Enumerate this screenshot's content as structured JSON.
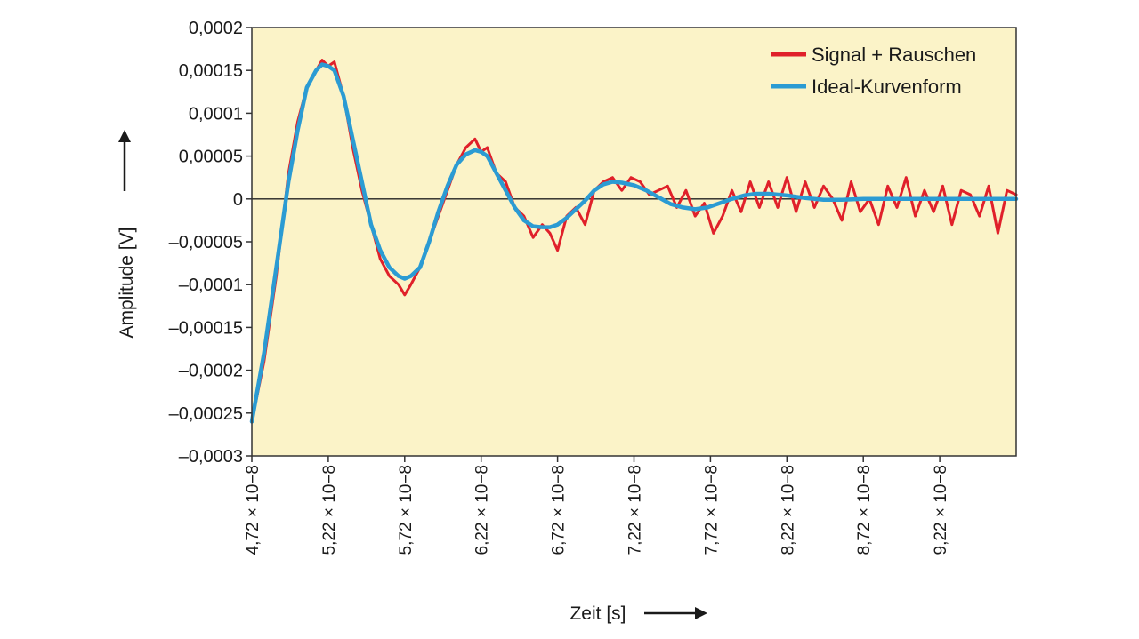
{
  "chart_data": {
    "type": "line",
    "xlabel": "Zeit [s]",
    "ylabel": "Amplitude [V]",
    "xlim": [
      4.72e-08,
      9.72e-08
    ],
    "ylim": [
      -0.0003,
      0.0002
    ],
    "x_ticks": [
      4.72e-08,
      5.22e-08,
      5.72e-08,
      6.22e-08,
      6.72e-08,
      7.22e-08,
      7.72e-08,
      8.22e-08,
      8.72e-08,
      9.22e-08
    ],
    "x_tick_labels": [
      "4,72 × 10−8",
      "5,22 × 10−8",
      "5,72 × 10−8",
      "6,22 × 10−8",
      "6,72 × 10−8",
      "7,22 × 10−8",
      "7,72 × 10−8",
      "8,22 × 10−8",
      "8,72 × 10−8",
      "9,22 × 10−8"
    ],
    "y_ticks": [
      0.0002,
      0.00015,
      0.0001,
      5e-05,
      0,
      -5e-05,
      -0.0001,
      -0.00015,
      -0.0002,
      -0.00025,
      -0.0003
    ],
    "y_tick_labels": [
      "0,0002",
      "0,00015",
      "0,0001",
      "0,00005",
      "0",
      "–0,00005",
      "–0,0001",
      "–0,00015",
      "–0,0002",
      "–0,00025",
      "–0,0003"
    ],
    "legend_position": "top-right",
    "grid": false,
    "background": "#fbf3c8",
    "series": [
      {
        "name": "Signal + Rauschen",
        "color": "#e0202a",
        "x": [
          4.72e-08,
          4.8e-08,
          4.88e-08,
          4.96e-08,
          5.02e-08,
          5.08e-08,
          5.14e-08,
          5.18e-08,
          5.22e-08,
          5.26e-08,
          5.32e-08,
          5.38e-08,
          5.44e-08,
          5.5e-08,
          5.56e-08,
          5.62e-08,
          5.68e-08,
          5.72e-08,
          5.76e-08,
          5.82e-08,
          5.88e-08,
          5.94e-08,
          6e-08,
          6.06e-08,
          6.12e-08,
          6.18e-08,
          6.22e-08,
          6.26e-08,
          6.32e-08,
          6.38e-08,
          6.44e-08,
          6.5e-08,
          6.56e-08,
          6.62e-08,
          6.67e-08,
          6.72e-08,
          6.78e-08,
          6.84e-08,
          6.9e-08,
          6.96e-08,
          7.02e-08,
          7.08e-08,
          7.14e-08,
          7.2e-08,
          7.26e-08,
          7.32e-08,
          7.38e-08,
          7.44e-08,
          7.5e-08,
          7.56e-08,
          7.62e-08,
          7.68e-08,
          7.74e-08,
          7.8e-08,
          7.86e-08,
          7.92e-08,
          7.98e-08,
          8.04e-08,
          8.1e-08,
          8.16e-08,
          8.22e-08,
          8.28e-08,
          8.34e-08,
          8.4e-08,
          8.46e-08,
          8.52e-08,
          8.58e-08,
          8.64e-08,
          8.7e-08,
          8.76e-08,
          8.82e-08,
          8.88e-08,
          8.94e-08,
          9e-08,
          9.06e-08,
          9.12e-08,
          9.18e-08,
          9.24e-08,
          9.3e-08,
          9.36e-08,
          9.42e-08,
          9.48e-08,
          9.54e-08,
          9.6e-08,
          9.66e-08,
          9.72e-08
        ],
        "values": [
          -0.00026,
          -0.00019,
          -9e-05,
          3e-05,
          9e-05,
          0.00013,
          0.00015,
          0.000162,
          0.000155,
          0.00016,
          0.00012,
          6e-05,
          1e-05,
          -3e-05,
          -7e-05,
          -9e-05,
          -0.0001,
          -0.000112,
          -0.0001,
          -8e-05,
          -5e-05,
          -2e-05,
          1e-05,
          4e-05,
          6e-05,
          7e-05,
          5.5e-05,
          6e-05,
          3e-05,
          2e-05,
          -1e-05,
          -2e-05,
          -4.5e-05,
          -3e-05,
          -4e-05,
          -6e-05,
          -2e-05,
          -1e-05,
          -3e-05,
          1e-05,
          2e-05,
          2.5e-05,
          1e-05,
          2.5e-05,
          2e-05,
          5e-06,
          1e-05,
          1.5e-05,
          -1e-05,
          1e-05,
          -2e-05,
          -5e-06,
          -4e-05,
          -2e-05,
          1e-05,
          -1.5e-05,
          2e-05,
          -1e-05,
          2e-05,
          -1e-05,
          2.5e-05,
          -1.5e-05,
          2e-05,
          -1e-05,
          1.5e-05,
          0.0,
          -2.5e-05,
          2e-05,
          -1.5e-05,
          0.0,
          -3e-05,
          1.5e-05,
          -1e-05,
          2.5e-05,
          -2e-05,
          1e-05,
          -1.5e-05,
          1.5e-05,
          -3e-05,
          1e-05,
          5e-06,
          -2e-05,
          1.5e-05,
          -4e-05,
          1e-05,
          5e-06
        ]
      },
      {
        "name": "Ideal-Kurvenform",
        "color": "#2b9bd3",
        "x": [
          4.72e-08,
          4.8e-08,
          4.88e-08,
          4.96e-08,
          5.02e-08,
          5.08e-08,
          5.14e-08,
          5.18e-08,
          5.22e-08,
          5.26e-08,
          5.32e-08,
          5.38e-08,
          5.44e-08,
          5.5e-08,
          5.56e-08,
          5.62e-08,
          5.68e-08,
          5.72e-08,
          5.76e-08,
          5.82e-08,
          5.88e-08,
          5.94e-08,
          6e-08,
          6.06e-08,
          6.12e-08,
          6.18e-08,
          6.22e-08,
          6.26e-08,
          6.32e-08,
          6.38e-08,
          6.44e-08,
          6.5e-08,
          6.56e-08,
          6.62e-08,
          6.67e-08,
          6.72e-08,
          6.78e-08,
          6.84e-08,
          6.9e-08,
          6.96e-08,
          7.02e-08,
          7.08e-08,
          7.14e-08,
          7.22e-08,
          7.3e-08,
          7.38e-08,
          7.46e-08,
          7.54e-08,
          7.62e-08,
          7.7e-08,
          7.78e-08,
          7.86e-08,
          7.94e-08,
          8.02e-08,
          8.1e-08,
          8.22e-08,
          8.34e-08,
          8.46e-08,
          8.58e-08,
          8.72e-08,
          8.9e-08,
          9.1e-08,
          9.3e-08,
          9.5e-08,
          9.72e-08
        ],
        "values": [
          -0.00026,
          -0.00018,
          -8e-05,
          2e-05,
          8e-05,
          0.00013,
          0.00015,
          0.000157,
          0.000155,
          0.00015,
          0.00012,
          7e-05,
          2e-05,
          -3e-05,
          -6e-05,
          -8e-05,
          -9e-05,
          -9.3e-05,
          -9e-05,
          -8e-05,
          -5e-05,
          -1.5e-05,
          1.5e-05,
          4e-05,
          5.2e-05,
          5.7e-05,
          5.5e-05,
          5e-05,
          3e-05,
          1e-05,
          -1e-05,
          -2.5e-05,
          -3.2e-05,
          -3.3e-05,
          -3.3e-05,
          -3e-05,
          -2.2e-05,
          -1.2e-05,
          -2e-06,
          1e-05,
          1.7e-05,
          2e-05,
          1.9e-05,
          1.6e-05,
          1e-05,
          2e-06,
          -6e-06,
          -1e-05,
          -1.2e-05,
          -1e-05,
          -5e-06,
          0.0,
          4e-06,
          6e-06,
          6e-06,
          4e-06,
          1e-06,
          -1e-06,
          -1e-06,
          0.0,
          0.0,
          0.0,
          0.0,
          0.0,
          0.0
        ]
      }
    ]
  }
}
